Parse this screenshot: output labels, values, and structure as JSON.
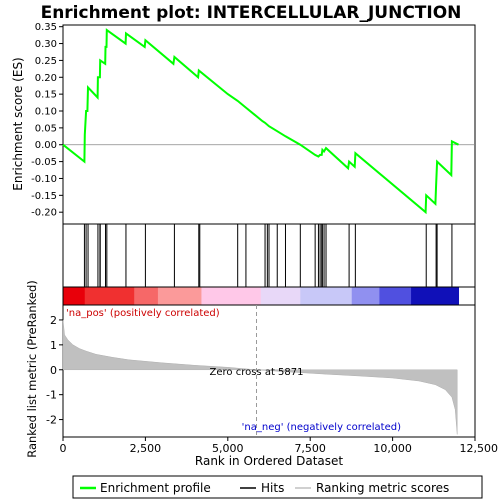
{
  "chart_data": {
    "type": "line",
    "title": "Enrichment plot: INTERCELLULAR_JUNCTION",
    "top_panel": {
      "ylabel": "Enrichment score (ES)",
      "ylim": [
        -0.235,
        0.355
      ],
      "yticks": [
        0.35,
        0.3,
        0.25,
        0.2,
        0.15,
        0.1,
        0.05,
        0.0,
        -0.05,
        -0.1,
        -0.15,
        -0.2
      ],
      "ytick_labels": [
        "0.35",
        "0.30",
        "0.25",
        "0.20",
        "0.15",
        "0.10",
        "0.05",
        "0.00",
        "-0.05",
        "-0.10",
        "-0.15",
        "-0.20"
      ],
      "grid": false,
      "series_color": "#00ff00",
      "es_points": [
        [
          0,
          0.0
        ],
        [
          650,
          -0.05
        ],
        [
          660,
          0.03
        ],
        [
          700,
          0.1
        ],
        [
          740,
          0.1
        ],
        [
          760,
          0.17
        ],
        [
          1050,
          0.14
        ],
        [
          1060,
          0.2
        ],
        [
          1120,
          0.2
        ],
        [
          1130,
          0.25
        ],
        [
          1280,
          0.24
        ],
        [
          1290,
          0.29
        ],
        [
          1320,
          0.29
        ],
        [
          1330,
          0.34
        ],
        [
          1900,
          0.3
        ],
        [
          1910,
          0.33
        ],
        [
          2480,
          0.29
        ],
        [
          2500,
          0.31
        ],
        [
          3350,
          0.24
        ],
        [
          3380,
          0.26
        ],
        [
          4100,
          0.2
        ],
        [
          4120,
          0.22
        ],
        [
          5000,
          0.15
        ],
        [
          5300,
          0.13
        ],
        [
          5550,
          0.11
        ],
        [
          6050,
          0.07
        ],
        [
          6130,
          0.065
        ],
        [
          6250,
          0.055
        ],
        [
          6500,
          0.04
        ],
        [
          6750,
          0.025
        ],
        [
          7200,
          0.0
        ],
        [
          7650,
          -0.03
        ],
        [
          7750,
          -0.035
        ],
        [
          7800,
          -0.03
        ],
        [
          7850,
          -0.03
        ],
        [
          7870,
          -0.015
        ],
        [
          7920,
          -0.02
        ],
        [
          7980,
          -0.01
        ],
        [
          8650,
          -0.07
        ],
        [
          8680,
          -0.05
        ],
        [
          8850,
          -0.065
        ],
        [
          8870,
          -0.025
        ],
        [
          11000,
          -0.2
        ],
        [
          11020,
          -0.15
        ],
        [
          11300,
          -0.175
        ],
        [
          11320,
          -0.12
        ],
        [
          11350,
          -0.05
        ],
        [
          11780,
          -0.09
        ],
        [
          11800,
          0.01
        ],
        [
          12000,
          0.0
        ]
      ]
    },
    "hits": [
      650,
      700,
      760,
      1060,
      1120,
      1130,
      1290,
      1330,
      1910,
      2500,
      3380,
      4120,
      4150,
      5300,
      5550,
      6130,
      6200,
      6250,
      6500,
      6750,
      7200,
      7650,
      7750,
      7800,
      7850,
      7870,
      7920,
      7980,
      8680,
      8870,
      11020,
      11320,
      11350,
      11800
    ],
    "bottom_panel": {
      "ylabel": "Ranked list metric (PreRanked)",
      "ylim": [
        -2.7,
        2.6
      ],
      "yticks": [
        2,
        1,
        0,
        -1,
        -2
      ],
      "ytick_labels": [
        "2",
        "1",
        "0",
        "-1",
        "-2"
      ],
      "metric_points": [
        [
          0,
          2.0
        ],
        [
          50,
          1.4
        ],
        [
          150,
          1.2
        ],
        [
          300,
          1.0
        ],
        [
          500,
          0.85
        ],
        [
          700,
          0.75
        ],
        [
          1000,
          0.62
        ],
        [
          1500,
          0.5
        ],
        [
          2000,
          0.4
        ],
        [
          3000,
          0.28
        ],
        [
          4000,
          0.18
        ],
        [
          5000,
          0.1
        ],
        [
          5871,
          0.0
        ],
        [
          7000,
          -0.1
        ],
        [
          8000,
          -0.18
        ],
        [
          9000,
          -0.25
        ],
        [
          10000,
          -0.33
        ],
        [
          10800,
          -0.45
        ],
        [
          11300,
          -0.6
        ],
        [
          11600,
          -0.8
        ],
        [
          11800,
          -1.1
        ],
        [
          11900,
          -1.6
        ],
        [
          11960,
          -2.6
        ]
      ],
      "zero_cross_rank": 5871,
      "zero_cross_label": "Zero cross at 5871",
      "pos_label": "'na_pos' (positively correlated)",
      "neg_label": "'na_neg' (negatively correlated)"
    },
    "x": {
      "xlabel": "Rank in Ordered Dataset",
      "xlim": [
        0,
        12500
      ],
      "xticks": [
        0,
        2500,
        5000,
        7500,
        10000,
        12500
      ],
      "xtick_labels": [
        "0",
        "2,500",
        "5,000",
        "7,500",
        "10,000",
        "12,500"
      ],
      "n_ranks": 12000
    },
    "heatmap_colors": [
      "#e8000a",
      "#f03030",
      "#f66868",
      "#fb9a9a",
      "#ffc8e8",
      "#e8d8f8",
      "#c8c8f8",
      "#9090f0",
      "#5050e0",
      "#1010b8"
    ],
    "legend": {
      "placement": "bottom",
      "entries": [
        {
          "label": "Enrichment profile",
          "color": "#00ff00"
        },
        {
          "label": "Hits",
          "color": "#000000"
        },
        {
          "label": "Ranking metric scores",
          "color": "#c0c0c0"
        }
      ]
    }
  }
}
